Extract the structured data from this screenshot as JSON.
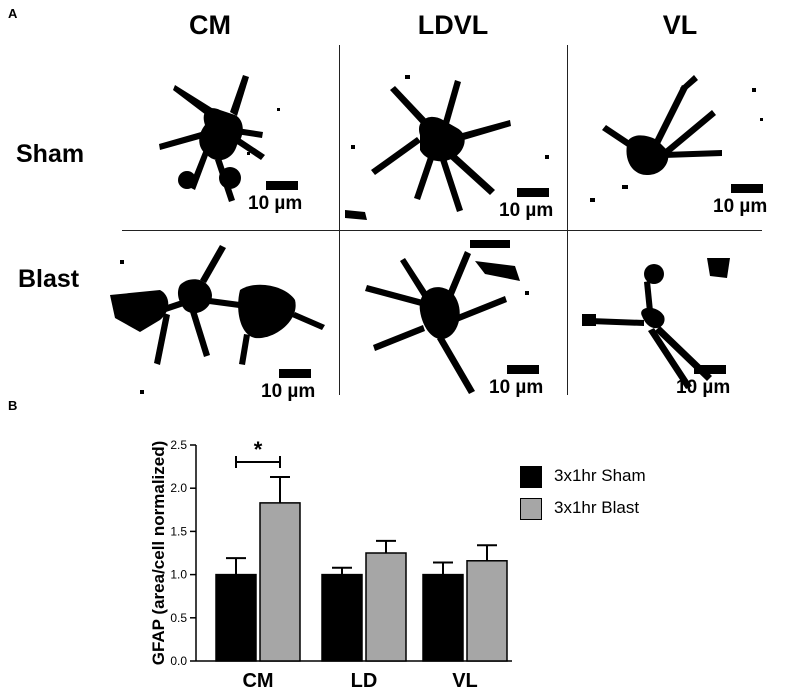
{
  "panel_a": {
    "letter": "A",
    "columns": [
      "CM",
      "LDVL",
      "VL"
    ],
    "rows": [
      "Sham",
      "Blast"
    ],
    "scale_bar_label": "10 µm"
  },
  "panel_b": {
    "letter": "B"
  },
  "chart_data": {
    "type": "bar",
    "categories": [
      "CM",
      "LD",
      "VL"
    ],
    "series": [
      {
        "name": "3x1hr Sham",
        "values": [
          1.0,
          1.0,
          1.0
        ],
        "error": [
          0.19,
          0.08,
          0.14
        ],
        "color": "#000000"
      },
      {
        "name": "3x1hr Blast",
        "values": [
          1.83,
          1.25,
          1.16
        ],
        "error": [
          0.3,
          0.14,
          0.18
        ],
        "color": "#a6a6a6"
      }
    ],
    "ylabel": "GFAP (area/cell normalized)",
    "xlabel": "",
    "ylim": [
      0,
      2.5
    ],
    "yticks": [
      "0.0",
      "0.5",
      "1.0",
      "1.5",
      "2.0",
      "2.5"
    ],
    "legend_position": "right",
    "significance": {
      "category": "CM",
      "label": "*"
    },
    "grid": false
  }
}
